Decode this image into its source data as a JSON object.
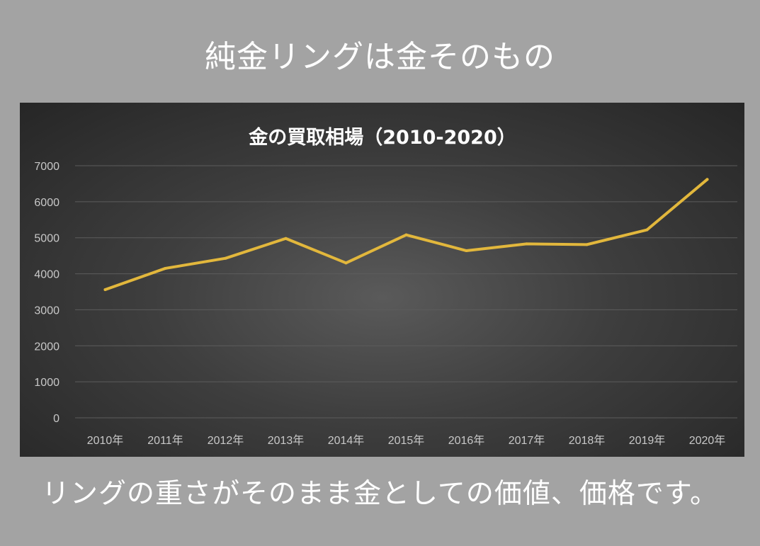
{
  "page": {
    "headline": "純金リングは金そのもの",
    "caption": "リングの重さがそのまま金としての価値、価格です。"
  },
  "colors": {
    "background": "#a3a3a3",
    "panel": "#2e2e2e",
    "line": "#e2b73c",
    "text": "#ffffff",
    "tick_text": "#c8c8c8",
    "grid": "#5c5c5c"
  },
  "chart_data": {
    "type": "line",
    "title": "金の買取相場（2010-2020）",
    "xlabel": "",
    "ylabel": "",
    "categories": [
      "2010年",
      "2011年",
      "2012年",
      "2013年",
      "2014年",
      "2015年",
      "2016年",
      "2017年",
      "2018年",
      "2019年",
      "2020年"
    ],
    "series": [
      {
        "values": [
          3560,
          4150,
          4430,
          4980,
          4300,
          5080,
          4640,
          4830,
          4810,
          5220,
          6620
        ]
      }
    ],
    "ylim": [
      0,
      7000
    ],
    "yticks": [
      0,
      1000,
      2000,
      3000,
      4000,
      5000,
      6000,
      7000
    ],
    "grid": true,
    "legend": "none"
  }
}
